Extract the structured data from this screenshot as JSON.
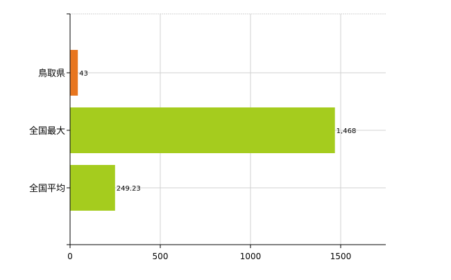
{
  "chart_data": {
    "type": "bar",
    "orientation": "horizontal",
    "categories": [
      "鳥取県",
      "全国最大",
      "全国平均"
    ],
    "values": [
      43,
      1468,
      249.23
    ],
    "value_labels": [
      "43",
      "1,468",
      "249.23"
    ],
    "colors": [
      "#e8761f",
      "#a5cc1e",
      "#a5cc1e"
    ],
    "xlim": [
      0,
      1750
    ],
    "xticks": [
      0,
      500,
      1000,
      1500
    ],
    "xtick_labels": [
      "0",
      "500",
      "1000",
      "1500"
    ],
    "grid": true,
    "title": "",
    "xlabel": "",
    "ylabel": ""
  }
}
